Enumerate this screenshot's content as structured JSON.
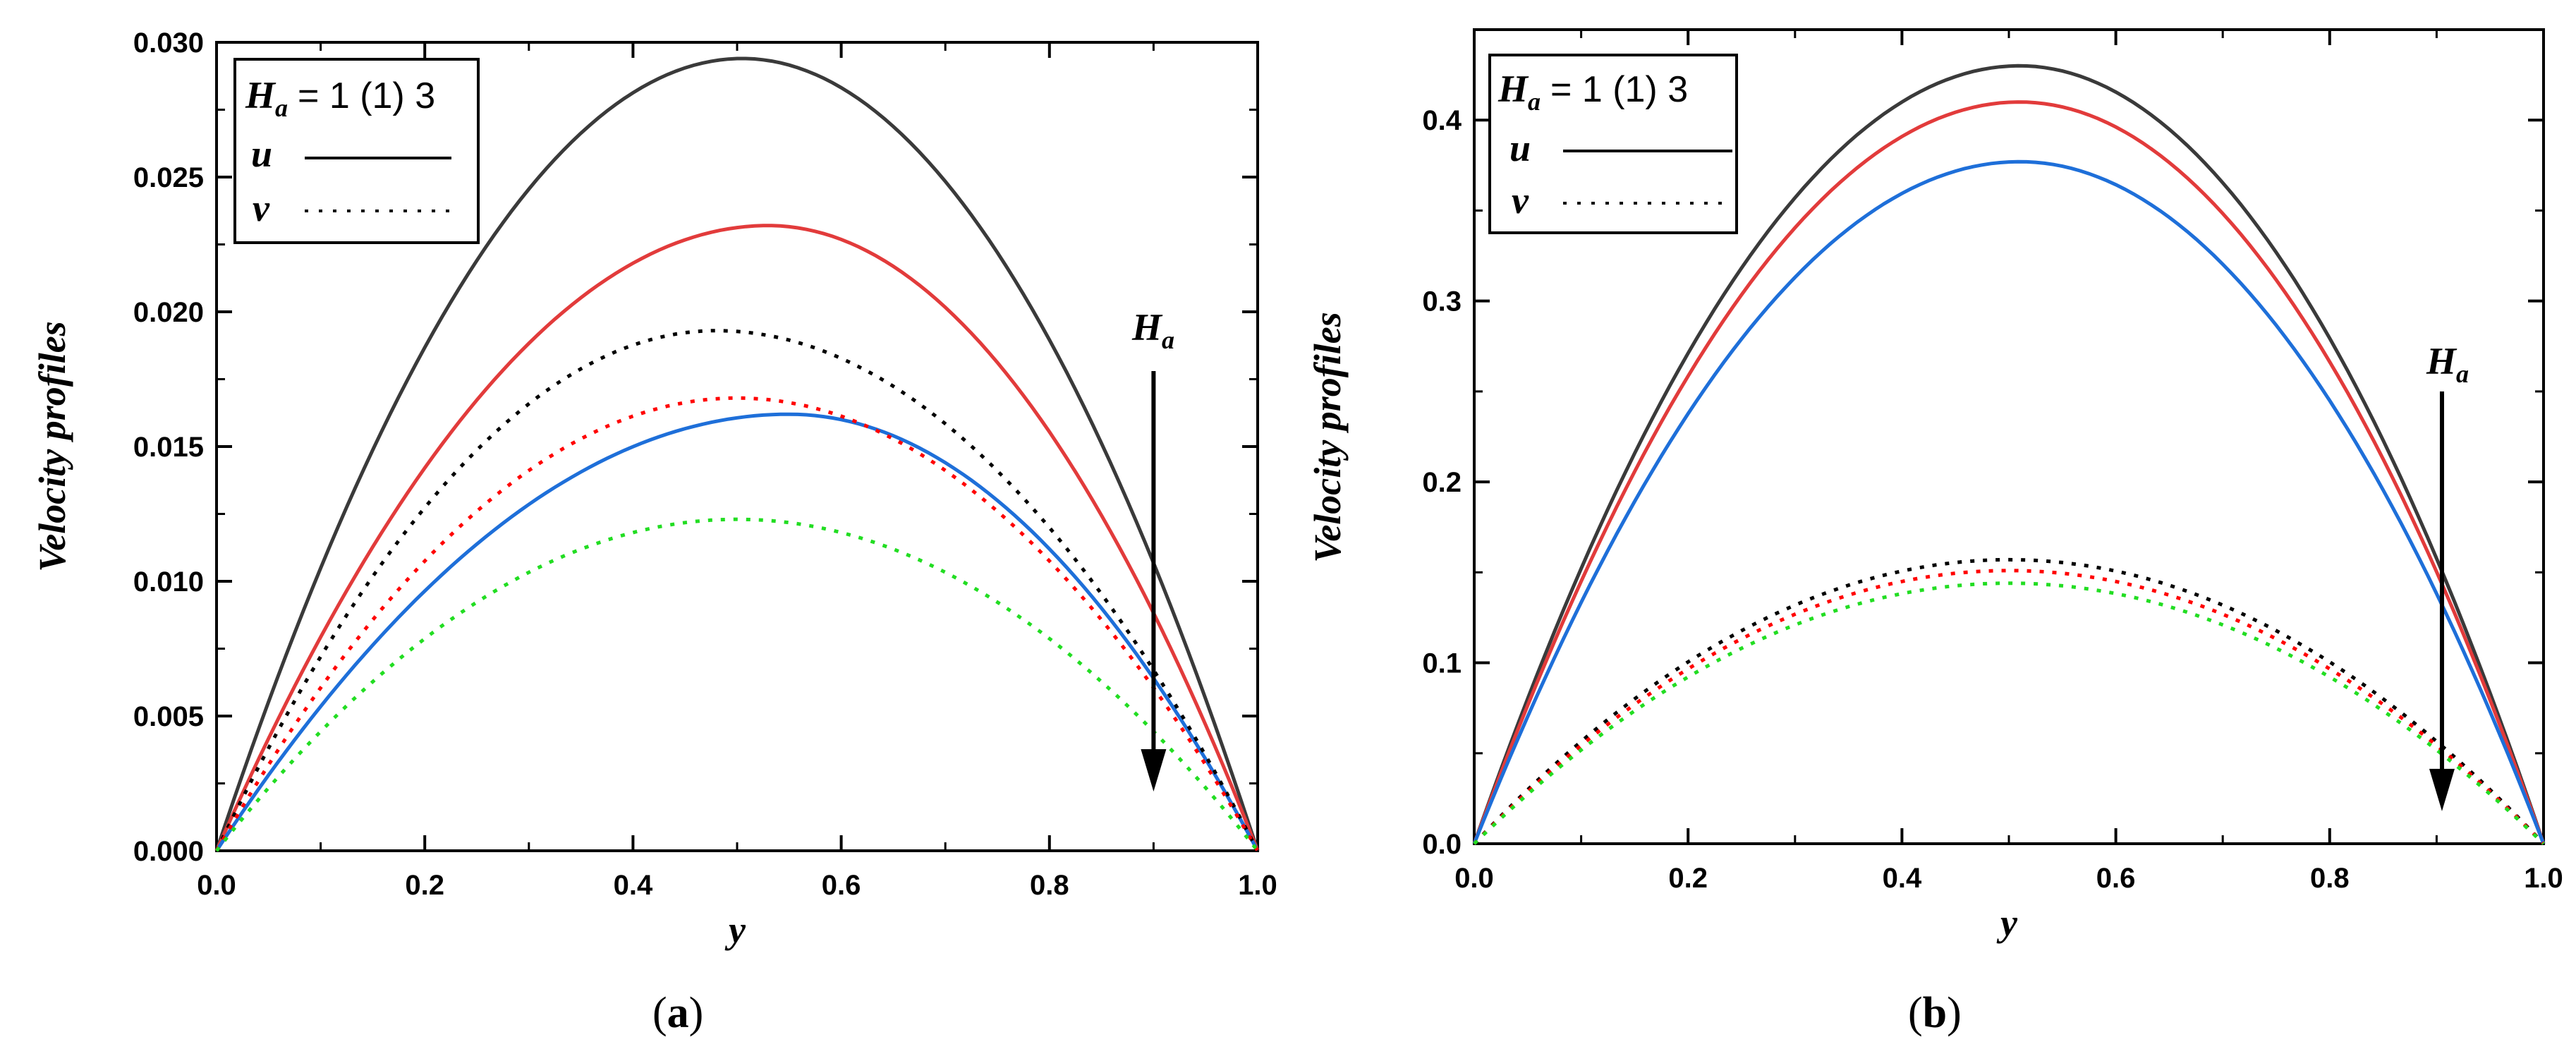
{
  "chart_data": [
    {
      "panel": "a",
      "caption_letter": "a",
      "type": "line",
      "xlabel": "y",
      "ylabel": "Velocity profiles",
      "xlim": [
        0,
        1
      ],
      "ylim": [
        0,
        0.03
      ],
      "x_ticks": [
        "0.0",
        "0.2",
        "0.4",
        "0.6",
        "0.8",
        "1.0"
      ],
      "y_ticks": [
        "0.000",
        "0.005",
        "0.010",
        "0.015",
        "0.020",
        "0.025",
        "0.030"
      ],
      "legend": {
        "param_symbol": "H",
        "param_sub": "a",
        "param_text": "= 1 (1) 3",
        "u_label": "u",
        "v_label": "v"
      },
      "annotation": {
        "symbol": "H",
        "sub": "a",
        "arrow_x": 0.9,
        "arrow_from": 0.0178,
        "arrow_to": 0.0022
      },
      "series": [
        {
          "name": "u, Ha=1",
          "style": "solid",
          "color": "#3a3a3a",
          "peak": 0.0294,
          "peak_x": 0.505
        },
        {
          "name": "u, Ha=2",
          "style": "solid",
          "color": "#e23b3b",
          "peak": 0.0232,
          "peak_x": 0.53
        },
        {
          "name": "u, Ha=3",
          "style": "solid",
          "color": "#1e6fd9",
          "peak": 0.0162,
          "peak_x": 0.55
        },
        {
          "name": "v, Ha=1",
          "style": "dotted",
          "color": "#000000",
          "peak": 0.0193,
          "peak_x": 0.48
        },
        {
          "name": "v, Ha=2",
          "style": "dotted",
          "color": "#ff0000",
          "peak": 0.0168,
          "peak_x": 0.5
        },
        {
          "name": "v, Ha=3",
          "style": "dotted",
          "color": "#22dd22",
          "peak": 0.0123,
          "peak_x": 0.5
        }
      ]
    },
    {
      "panel": "b",
      "caption_letter": "b",
      "type": "line",
      "xlabel": "y",
      "ylabel": "Velocity profiles",
      "xlim": [
        0,
        1
      ],
      "ylim": [
        0,
        0.45
      ],
      "x_ticks": [
        "0.0",
        "0.2",
        "0.4",
        "0.6",
        "0.8",
        "1.0"
      ],
      "y_ticks": [
        "0.0",
        "0.1",
        "0.2",
        "0.3",
        "0.4"
      ],
      "legend": {
        "param_symbol": "H",
        "param_sub": "a",
        "param_text": "= 1 (1) 3",
        "u_label": "u",
        "v_label": "v"
      },
      "annotation": {
        "symbol": "H",
        "sub": "a",
        "arrow_x": 0.905,
        "arrow_from": 0.25,
        "arrow_to": 0.018
      },
      "series": [
        {
          "name": "u, Ha=1",
          "style": "solid",
          "color": "#3a3a3a",
          "peak": 0.43,
          "peak_x": 0.51
        },
        {
          "name": "u, Ha=2",
          "style": "solid",
          "color": "#e23b3b",
          "peak": 0.41,
          "peak_x": 0.51
        },
        {
          "name": "u, Ha=3",
          "style": "solid",
          "color": "#1e6fd9",
          "peak": 0.377,
          "peak_x": 0.51
        },
        {
          "name": "v, Ha=1",
          "style": "dotted",
          "color": "#000000",
          "peak": 0.157,
          "peak_x": 0.5
        },
        {
          "name": "v, Ha=2",
          "style": "dotted",
          "color": "#ff0000",
          "peak": 0.151,
          "peak_x": 0.5
        },
        {
          "name": "v, Ha=3",
          "style": "dotted",
          "color": "#22dd22",
          "peak": 0.144,
          "peak_x": 0.5
        }
      ]
    }
  ]
}
